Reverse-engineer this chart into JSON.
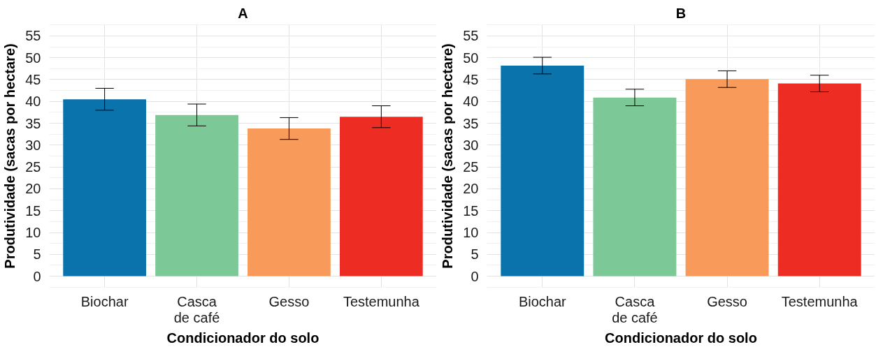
{
  "chart_data": [
    {
      "type": "bar",
      "title": "A",
      "categories": [
        "Biochar",
        "Casca\nde café",
        "Gesso",
        "Testemunha"
      ],
      "values": [
        40.5,
        36.9,
        33.8,
        36.5
      ],
      "errors": [
        2.5,
        2.5,
        2.5,
        2.5
      ],
      "colors": [
        "#0b73ab",
        "#7cc897",
        "#f89b5a",
        "#ed2c24"
      ],
      "xlabel": "Condicionador do solo",
      "ylabel": "Produtividade (sacas por hectare)",
      "ylim": [
        -2.7,
        57.7
      ],
      "yticks": [
        0,
        5,
        10,
        15,
        20,
        25,
        30,
        35,
        40,
        45,
        50,
        55
      ],
      "grid": true
    },
    {
      "type": "bar",
      "title": "B",
      "categories": [
        "Biochar",
        "Casca\nde café",
        "Gesso",
        "Testemunha"
      ],
      "values": [
        48.2,
        40.9,
        45.1,
        44.1
      ],
      "errors": [
        1.9,
        1.9,
        1.9,
        1.9
      ],
      "colors": [
        "#0b73ab",
        "#7cc897",
        "#f89b5a",
        "#ed2c24"
      ],
      "xlabel": "Condicionador do solo",
      "ylabel": "Produtividade (sacas por hectare)",
      "ylim": [
        -2.7,
        57.7
      ],
      "yticks": [
        0,
        5,
        10,
        15,
        20,
        25,
        30,
        35,
        40,
        45,
        50,
        55
      ],
      "grid": true
    }
  ]
}
